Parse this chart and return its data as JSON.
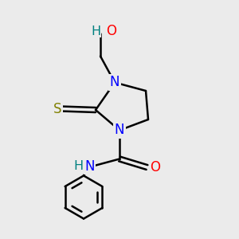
{
  "bg_color": "#ebebeb",
  "atom_colors": {
    "N": "#0000ff",
    "O": "#ff0000",
    "S": "#808000",
    "H": "#008080",
    "C": "#000000"
  },
  "bond_color": "#000000",
  "bond_width": 1.8
}
